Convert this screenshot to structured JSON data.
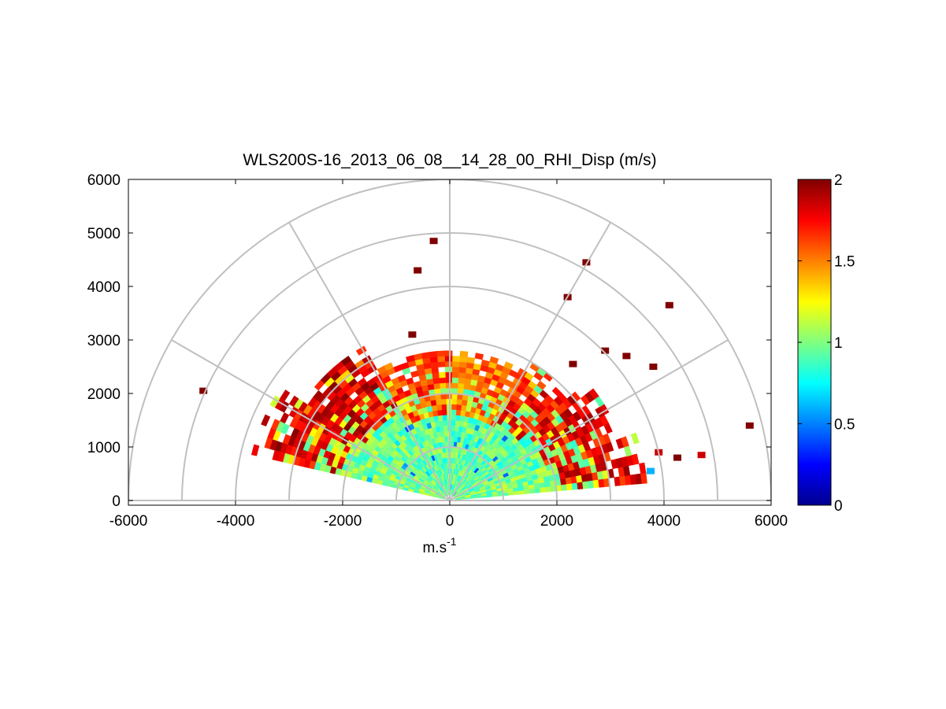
{
  "chart_data": {
    "type": "heatmap",
    "subtype": "polar-rhi-sector",
    "title": "WLS200S-16_2013_06_08__14_28_00_RHI_Disp (m/s)",
    "xlabel_main": "m.s",
    "xlabel_sup": "-1",
    "ylabel": "",
    "xlim": [
      -6000,
      6000
    ],
    "ylim": [
      0,
      6000
    ],
    "x_ticks": [
      -6000,
      -4000,
      -2000,
      0,
      2000,
      4000,
      6000
    ],
    "x_tick_labels": [
      "-6000",
      "-4000",
      "-2000",
      "0",
      "2000",
      "4000",
      "6000"
    ],
    "y_ticks": [
      0,
      1000,
      2000,
      3000,
      4000,
      5000,
      6000
    ],
    "y_tick_labels": [
      "0",
      "1000",
      "2000",
      "3000",
      "4000",
      "5000",
      "6000"
    ],
    "polar_grid": {
      "rings_m": [
        1000,
        2000,
        3000,
        4000,
        5000,
        6000
      ],
      "spokes_deg": [
        0,
        30,
        60,
        90,
        120,
        150,
        180
      ]
    },
    "colorbar": {
      "colormap": "jet",
      "range": [
        0,
        2
      ],
      "ticks": [
        0,
        0.5,
        1,
        1.5,
        2
      ],
      "tick_labels": [
        "0",
        "0.5",
        "1",
        "1.5",
        "2"
      ]
    },
    "scan": {
      "elevation_deg_min": 5,
      "elevation_deg_max": 165,
      "elevation_step_deg": 3,
      "range_step_m": 100,
      "wedges": [
        {
          "from_deg": 5,
          "to_deg": 20,
          "max_range_m": 3700,
          "value_low": 1.0,
          "value_high": 1.95
        },
        {
          "from_deg": 20,
          "to_deg": 40,
          "max_range_m": 3400,
          "value_low": 0.95,
          "value_high": 1.95
        },
        {
          "from_deg": 40,
          "to_deg": 60,
          "max_range_m": 3000,
          "value_low": 0.95,
          "value_high": 1.9
        },
        {
          "from_deg": 60,
          "to_deg": 90,
          "max_range_m": 2800,
          "value_low": 0.95,
          "value_high": 1.7
        },
        {
          "from_deg": 90,
          "to_deg": 120,
          "max_range_m": 2800,
          "value_low": 0.95,
          "value_high": 1.8
        },
        {
          "from_deg": 120,
          "to_deg": 145,
          "max_range_m": 3300,
          "value_low": 0.95,
          "value_high": 2.0
        },
        {
          "from_deg": 145,
          "to_deg": 165,
          "max_range_m": 3800,
          "value_low": 1.0,
          "value_high": 2.0
        }
      ],
      "isolated_points": [
        {
          "x": -600,
          "y": 4300,
          "value": 2.0
        },
        {
          "x": -300,
          "y": 4850,
          "value": 2.0
        },
        {
          "x": 2550,
          "y": 4450,
          "value": 2.0
        },
        {
          "x": 2200,
          "y": 3800,
          "value": 2.0
        },
        {
          "x": 4100,
          "y": 3650,
          "value": 2.0
        },
        {
          "x": 5600,
          "y": 1400,
          "value": 2.0
        },
        {
          "x": -4600,
          "y": 2050,
          "value": 2.0
        },
        {
          "x": 2900,
          "y": 2800,
          "value": 2.0
        },
        {
          "x": 3300,
          "y": 2700,
          "value": 2.0
        },
        {
          "x": 3800,
          "y": 2500,
          "value": 2.0
        },
        {
          "x": 4250,
          "y": 800,
          "value": 2.0
        },
        {
          "x": 4700,
          "y": 850,
          "value": 1.85
        },
        {
          "x": 3900,
          "y": 900,
          "value": 1.85
        },
        {
          "x": 3750,
          "y": 550,
          "value": 0.6
        },
        {
          "x": -700,
          "y": 3100,
          "value": 2.0
        },
        {
          "x": 2300,
          "y": 2550,
          "value": 2.0
        }
      ]
    }
  }
}
